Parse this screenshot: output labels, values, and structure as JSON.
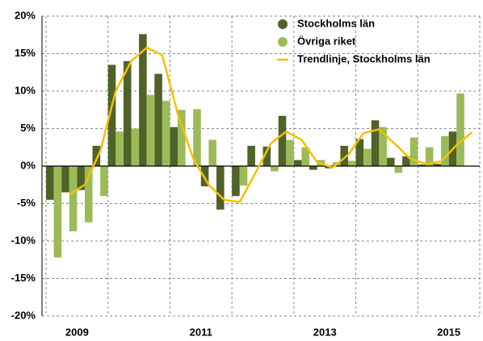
{
  "chart_data": {
    "type": "bar_line",
    "categories": [
      null,
      "2009",
      null,
      null,
      null,
      null,
      null,
      null,
      null,
      "2011",
      null,
      null,
      null,
      null,
      null,
      null,
      null,
      "2013",
      null,
      null,
      null,
      null,
      null,
      null,
      null,
      "2015",
      null,
      null
    ],
    "series": [
      {
        "name": "Stockholms län",
        "color": "#4f6228",
        "kind": "bar",
        "values": [
          -4.5,
          -3.5,
          -3.2,
          2.7,
          13.5,
          14.0,
          17.6,
          12.3,
          5.2,
          0,
          -2.7,
          -5.8,
          -4.0,
          2.7,
          2.6,
          6.7,
          0.8,
          -0.5,
          -0.3,
          2.7,
          3.6,
          6.1,
          1.1,
          1.3,
          0.2,
          0.3,
          4.6,
          null
        ]
      },
      {
        "name": "Övriga riket",
        "color": "#9bbb59",
        "kind": "bar",
        "values": [
          -12.2,
          -8.7,
          -7.5,
          -4.0,
          4.6,
          5.0,
          9.5,
          8.7,
          7.5,
          7.6,
          3.5,
          0,
          -2.6,
          0,
          -0.7,
          3.5,
          2.5,
          0.8,
          0.5,
          0.7,
          2.3,
          5.2,
          -0.9,
          3.8,
          2.5,
          4.0,
          9.7,
          null
        ]
      },
      {
        "name": "Trendlinje, Stockholms län",
        "color": "#f5c000",
        "kind": "line",
        "values": [
          null,
          -3.8,
          -2.5,
          2.0,
          10,
          14,
          15.8,
          14.8,
          7,
          1,
          -2.5,
          -4.5,
          -4.8,
          -1,
          3,
          4.6,
          3.5,
          0.5,
          -0.2,
          1.5,
          4.4,
          4.9,
          3,
          1,
          0.3,
          0.6,
          2.8,
          4.5
        ]
      }
    ],
    "ylim": [
      -20,
      20
    ],
    "yticks": [
      {
        "value": -20,
        "label": "-20%"
      },
      {
        "value": -15,
        "label": "-15%"
      },
      {
        "value": -10,
        "label": "-10%"
      },
      {
        "value": -5,
        "label": "-5%"
      },
      {
        "value": 0,
        "label": "0%"
      },
      {
        "value": 5,
        "label": "5%"
      },
      {
        "value": 10,
        "label": "10%"
      },
      {
        "value": 15,
        "label": "15%"
      },
      {
        "value": 20,
        "label": "20%"
      }
    ],
    "grid": true,
    "legend": "upper right"
  }
}
